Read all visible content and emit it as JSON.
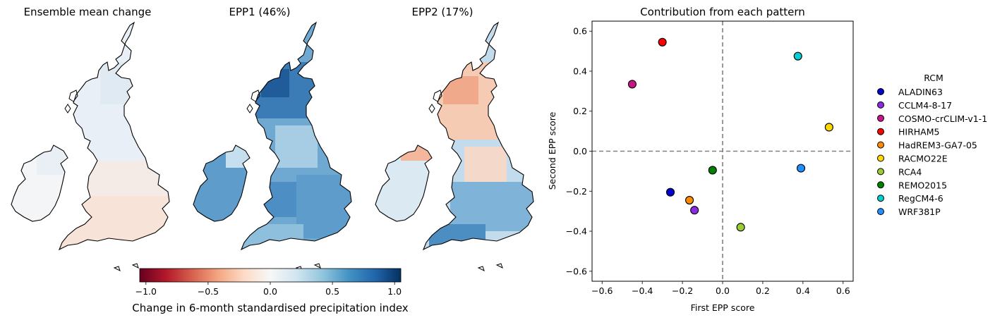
{
  "maps": {
    "titles": [
      "Ensemble mean change",
      "EPP1 (46%)",
      "EPP2 (17%)"
    ],
    "colorbar": {
      "label": "Change in 6-month standardised precipitation index",
      "ticks": [
        "−1.0",
        "−0.5",
        "0.0",
        "0.5",
        "1.0"
      ],
      "range": [
        -1.05,
        1.05
      ],
      "colormap": [
        "#67001f",
        "#b2182b",
        "#d6604d",
        "#f4a582",
        "#fddbc7",
        "#f7f7f7",
        "#d1e5f0",
        "#92c5de",
        "#4393c3",
        "#2166ac",
        "#053061"
      ]
    },
    "land_outline_color": "#000000"
  },
  "chart_data": {
    "type": "scatter",
    "title": "Contribution from each pattern",
    "xlabel": "First EPP score",
    "ylabel": "Second EPP score",
    "xlim": [
      -0.65,
      0.65
    ],
    "ylim": [
      -0.65,
      0.65
    ],
    "xticks": [
      "−0.6",
      "−0.4",
      "−0.2",
      "0.0",
      "0.2",
      "0.4",
      "0.6"
    ],
    "yticks": [
      "−0.6",
      "−0.4",
      "−0.2",
      "0.0",
      "0.2",
      "0.4",
      "0.6"
    ],
    "xtick_values": [
      -0.6,
      -0.4,
      -0.2,
      0.0,
      0.2,
      0.4,
      0.6
    ],
    "ytick_values": [
      -0.6,
      -0.4,
      -0.2,
      0.0,
      0.2,
      0.4,
      0.6
    ],
    "reference_lines": {
      "x": 0,
      "y": 0,
      "style": "dashed",
      "color": "#808080"
    },
    "grid": false,
    "legend_title": "RCM",
    "legend_placement": "right, outside",
    "series": [
      {
        "name": "ALADIN63",
        "x": -0.26,
        "y": -0.205,
        "color": "#0000cd"
      },
      {
        "name": "CCLM4-8-17",
        "x": -0.14,
        "y": -0.295,
        "color": "#8a2be2"
      },
      {
        "name": "COSMO-crCLIM-v1-1",
        "x": -0.45,
        "y": 0.335,
        "color": "#c71585"
      },
      {
        "name": "HIRHAM5",
        "x": -0.3,
        "y": 0.545,
        "color": "#ff0000"
      },
      {
        "name": "HadREM3-GA7-05",
        "x": -0.165,
        "y": -0.245,
        "color": "#ff8c00"
      },
      {
        "name": "RACMO22E",
        "x": 0.53,
        "y": 0.12,
        "color": "#ffd700"
      },
      {
        "name": "RCA4",
        "x": 0.09,
        "y": -0.38,
        "color": "#9acd32"
      },
      {
        "name": "REMO2015",
        "x": -0.05,
        "y": -0.095,
        "color": "#008000"
      },
      {
        "name": "RegCM4-6",
        "x": 0.375,
        "y": 0.475,
        "color": "#00ced1"
      },
      {
        "name": "WRF381P",
        "x": 0.39,
        "y": -0.085,
        "color": "#1e90ff"
      }
    ]
  }
}
